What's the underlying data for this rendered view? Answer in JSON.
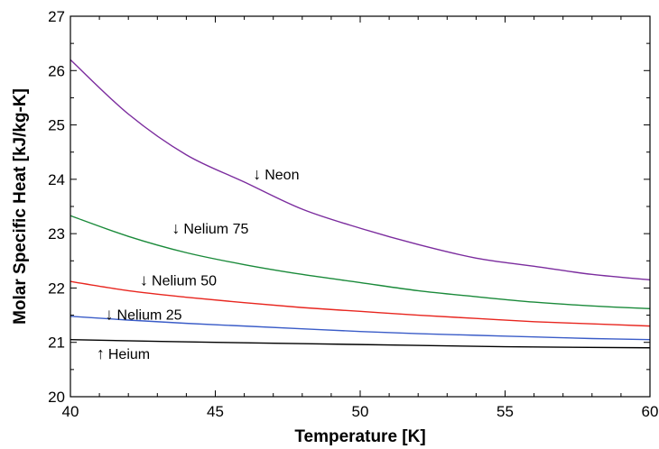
{
  "chart_data": {
    "type": "line",
    "xlabel": "Temperature  [K]",
    "ylabel": "Molar Specific Heat [kJ/kg-K]",
    "xlim": [
      40,
      60
    ],
    "ylim": [
      20,
      27
    ],
    "xticks": [
      40,
      45,
      50,
      55,
      60
    ],
    "yticks": [
      20,
      21,
      22,
      23,
      24,
      25,
      26,
      27
    ],
    "grid": false,
    "series": [
      {
        "name": "Neon",
        "color": "#7b2c9e",
        "x": [
          40,
          42,
          44,
          46,
          48,
          50,
          52,
          54,
          56,
          58,
          60
        ],
        "y": [
          26.2,
          25.2,
          24.45,
          23.95,
          23.45,
          23.1,
          22.8,
          22.55,
          22.4,
          22.25,
          22.15
        ]
      },
      {
        "name": "Nelium 75",
        "color": "#1a8a3a",
        "x": [
          40,
          42,
          44,
          46,
          48,
          50,
          52,
          54,
          56,
          58,
          60
        ],
        "y": [
          23.33,
          22.95,
          22.65,
          22.43,
          22.25,
          22.1,
          21.95,
          21.84,
          21.74,
          21.67,
          21.62
        ]
      },
      {
        "name": "Nelium 50",
        "color": "#e8261f",
        "x": [
          40,
          42,
          44,
          46,
          48,
          50,
          52,
          54,
          56,
          58,
          60
        ],
        "y": [
          22.12,
          21.95,
          21.83,
          21.73,
          21.64,
          21.57,
          21.5,
          21.44,
          21.38,
          21.34,
          21.3
        ]
      },
      {
        "name": "Nelium 25",
        "color": "#3a5cc8",
        "x": [
          40,
          42,
          44,
          46,
          48,
          50,
          52,
          54,
          56,
          58,
          60
        ],
        "y": [
          21.48,
          21.41,
          21.35,
          21.3,
          21.25,
          21.2,
          21.16,
          21.13,
          21.1,
          21.07,
          21.05
        ]
      },
      {
        "name": "Helium",
        "color": "#000000",
        "x": [
          40,
          45,
          50,
          55,
          60
        ],
        "y": [
          21.05,
          21.0,
          20.96,
          20.92,
          20.9
        ]
      }
    ],
    "annotations": [
      {
        "text": "Neon",
        "arrow": "↓",
        "x": 46.3,
        "y": 24.0
      },
      {
        "text": "Nelium 75",
        "arrow": "↓",
        "x": 43.5,
        "y": 23.0
      },
      {
        "text": "Nelium 50",
        "arrow": "↓",
        "x": 42.4,
        "y": 22.05
      },
      {
        "text": "Nelium 25",
        "arrow": "↓",
        "x": 41.2,
        "y": 21.42
      },
      {
        "text": "Heium",
        "arrow": "↑",
        "x": 40.9,
        "y": 20.7
      }
    ]
  }
}
